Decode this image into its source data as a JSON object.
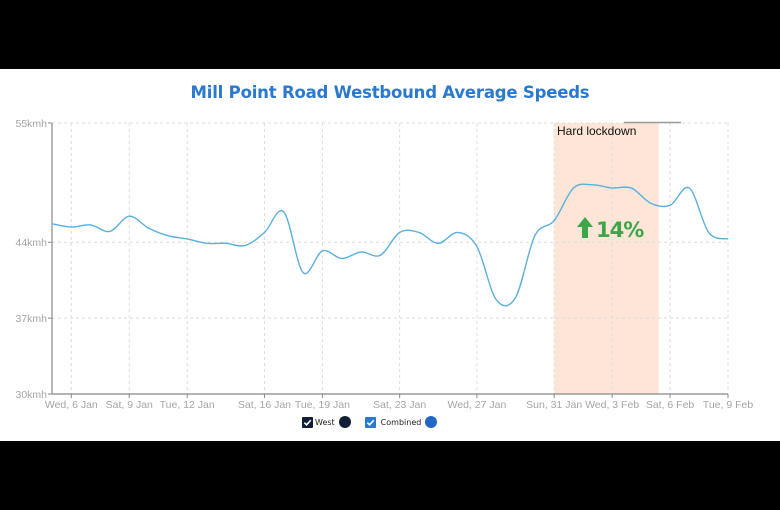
{
  "title": "Mill Point Road Westbound Average Speeds",
  "legend": [
    {
      "label": "West",
      "checked": true,
      "checkbox_color": "#0e1f36",
      "dot_color": "#0e1f36"
    },
    {
      "label": "Combined",
      "checked": true,
      "checkbox_color": "#2a79cf",
      "dot_color": "#1f66c6"
    }
  ],
  "annotation": {
    "label": "Hard lockdown",
    "change_label": "14%",
    "change_icon": "arrow-up-icon",
    "change_color": "#3ea64a",
    "band_color": "#fde6d7"
  },
  "colors": {
    "line": "#5ab0dc",
    "title": "#2a79cf",
    "axis": "#888888",
    "grid": "#dddddd"
  },
  "chart_data": {
    "type": "line",
    "title": "Mill Point Road Westbound Average Speeds",
    "xlabel": "",
    "ylabel": "",
    "ylim": [
      30,
      55
    ],
    "y_ticks": [
      "30kmh",
      "37kmh",
      "44kmh",
      "55kmh"
    ],
    "y_tick_values": [
      30,
      37,
      44,
      55
    ],
    "x_ticks": [
      "Wed, 6 Jan",
      "Sat, 9 Jan",
      "Tue, 12 Jan",
      "Sat, 16 Jan",
      "Tue, 19 Jan",
      "Sat, 23 Jan",
      "Wed, 27 Jan",
      "Sun, 31 Jan",
      "Wed, 3 Feb",
      "Sat, 6 Feb",
      "Tue, 9 Feb"
    ],
    "x_tick_day_index": [
      1,
      4,
      7,
      11,
      14,
      18,
      22,
      26,
      29,
      32,
      35
    ],
    "grid": true,
    "legend_position": "bottom",
    "highlight_band": {
      "label": "Hard lockdown",
      "from_day_index": 26,
      "to_day_index": 31,
      "annotation": "↑14%"
    },
    "x": [
      "5 Jan",
      "6 Jan",
      "7 Jan",
      "8 Jan",
      "9 Jan",
      "10 Jan",
      "11 Jan",
      "12 Jan",
      "13 Jan",
      "14 Jan",
      "15 Jan",
      "16 Jan",
      "17 Jan",
      "18 Jan",
      "19 Jan",
      "20 Jan",
      "21 Jan",
      "22 Jan",
      "23 Jan",
      "24 Jan",
      "25 Jan",
      "26 Jan",
      "27 Jan",
      "28 Jan",
      "29 Jan",
      "30 Jan",
      "31 Jan",
      "1 Feb",
      "2 Feb",
      "3 Feb",
      "4 Feb",
      "5 Feb",
      "6 Feb",
      "7 Feb",
      "8 Feb",
      "9 Feb"
    ],
    "series": [
      {
        "name": "West",
        "values": [
          45.7,
          45.4,
          45.6,
          45.0,
          46.4,
          45.3,
          44.6,
          44.3,
          43.9,
          43.9,
          43.7,
          44.9,
          46.8,
          41.2,
          43.2,
          42.5,
          43.1,
          42.8,
          44.9,
          44.9,
          43.9,
          44.9,
          43.6,
          38.7,
          38.9,
          44.6,
          46.0,
          49.0,
          49.3,
          49.0,
          49.0,
          47.6,
          47.4,
          49.0,
          44.9,
          44.3
        ]
      }
    ]
  }
}
